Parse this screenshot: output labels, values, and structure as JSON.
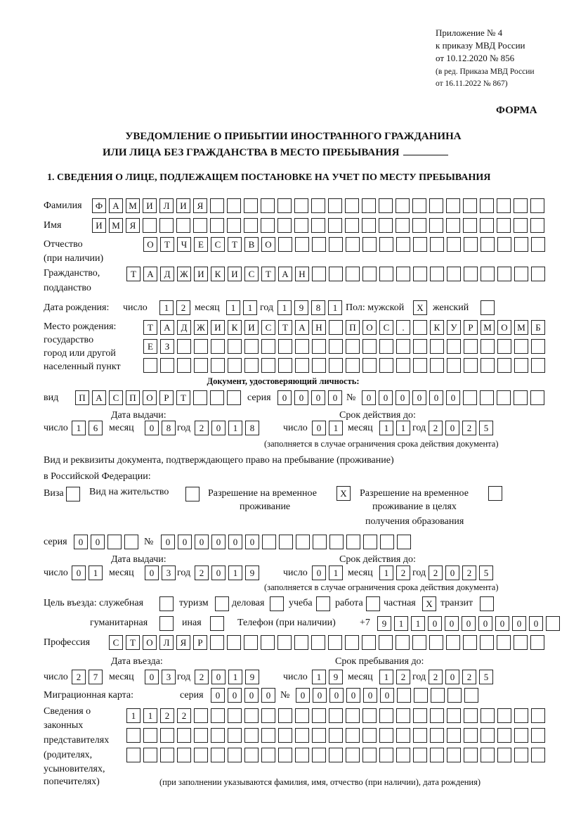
{
  "header": {
    "line1": "Приложение № 4",
    "line2": "к приказу МВД России",
    "line3": "от 10.12.2020 № 856",
    "line4": "(в ред. Приказа МВД России",
    "line5": "от 16.11.2022 № 867)",
    "form_label": "ФОРМА"
  },
  "title": {
    "line1": "УВЕДОМЛЕНИЕ О ПРИБЫТИИ ИНОСТРАННОГО ГРАЖДАНИНА",
    "line2": "ИЛИ ЛИЦА БЕЗ ГРАЖДАНСТВА В МЕСТО ПРЕБЫВАНИЯ"
  },
  "section1": {
    "heading": "1. СВЕДЕНИЯ О ЛИЦЕ, ПОДЛЕЖАЩЕМ ПОСТАНОВКЕ НА УЧЕТ ПО МЕСТУ ПРЕБЫВАНИЯ",
    "surname": {
      "label": "Фамилия",
      "value": "ФАМИЛИЯ"
    },
    "name": {
      "label": "Имя",
      "value": "ИМЯ"
    },
    "patronymic": {
      "label1": "Отчество",
      "label2": "(при наличии)",
      "value": "ОТЧЕСТВО"
    },
    "citizenship": {
      "label1": "Гражданство,",
      "label2": "подданство",
      "value": "ТАДЖИКИСТАН"
    },
    "birth_date": {
      "label": "Дата рождения:",
      "day_label": "число",
      "day": "12",
      "month_label": "месяц",
      "month": "11",
      "year_label": "год",
      "year": "1981",
      "sex_label": "Пол: мужской",
      "male": "X",
      "female_label": "женский",
      "female": ""
    },
    "birth_place": {
      "label1": "Место рождения:",
      "label2": "государство",
      "label3": "город или другой",
      "label4": "населенный пункт",
      "line1": "ТАДЖИКИСТАН ПОС. КУРМОМБ",
      "line2": "ЕЗ",
      "line3": ""
    },
    "id_doc": {
      "heading": "Документ, удостоверяющий личность:",
      "kind_label": "вид",
      "kind": "ПАСПОРТ",
      "series_label": "серия",
      "series": "0000",
      "number_label": "№",
      "number": "000000",
      "issue_label": "Дата выдачи:",
      "valid_label": "Срок действия до:",
      "day_label": "число",
      "month_label": "месяц",
      "year_label": "год",
      "issue_day": "16",
      "issue_month": "08",
      "issue_year": "2018",
      "valid_day": "01",
      "valid_month": "11",
      "valid_year": "2025",
      "note": "(заполняется в случае ограничения срока действия документа)"
    },
    "stay_doc": {
      "label1": "Вид и реквизиты документа, подтверждающего право на пребывание (проживание)",
      "label2": "в Российской Федерации:",
      "visa_label": "Виза",
      "visa": "",
      "residence_label": "Вид на жительство",
      "residence": "",
      "trp_label1": "Разрешение на временное",
      "trp_label2": "проживание",
      "trp": "X",
      "trp_edu_label1": "Разрешение на временное",
      "trp_edu_label2": "проживание в целях",
      "trp_edu_label3": "получения образования",
      "trp_edu": "",
      "series_label": "серия",
      "series": "00",
      "number_label": "№",
      "number": "000000",
      "issue_label": "Дата выдачи:",
      "valid_label": "Срок действия до:",
      "day_label": "число",
      "month_label": "месяц",
      "year_label": "год",
      "issue_day": "01",
      "issue_month": "03",
      "issue_year": "2019",
      "valid_day": "01",
      "valid_month": "12",
      "valid_year": "2025",
      "note": "(заполняется в случае ограничения срока действия документа)"
    },
    "purpose": {
      "label": "Цель въезда: служебная",
      "options": [
        {
          "label": "туризм",
          "value": ""
        },
        {
          "label": "деловая",
          "value": ""
        },
        {
          "label": "учеба",
          "value": ""
        },
        {
          "label": "работа",
          "value": ""
        },
        {
          "label": "частная",
          "value": "X"
        },
        {
          "label": "транзит",
          "value": ""
        }
      ],
      "service": "",
      "humanitarian_label": "гуманитарная",
      "humanitarian": "",
      "other_label": "иная",
      "other": ""
    },
    "phone": {
      "label": "Телефон (при наличии)",
      "prefix": "+7",
      "value": "9110000000"
    },
    "profession": {
      "label": "Профессия",
      "value": "СТОЛЯР"
    },
    "entry": {
      "entry_label": "Дата въезда:",
      "stay_label": "Срок пребывания до:",
      "day_label": "число",
      "month_label": "месяц",
      "year_label": "год",
      "entry_day": "27",
      "entry_month": "03",
      "entry_year": "2019",
      "stay_day": "19",
      "stay_month": "12",
      "stay_year": "2025"
    },
    "migration_card": {
      "label": "Миграционная карта:",
      "series_label": "серия",
      "series": "0000",
      "number_label": "№",
      "number": "000000"
    },
    "legal_reps": {
      "label1": "Сведения о",
      "label2": "законных",
      "label3": "представителях",
      "label4": "(родителях,",
      "label5": "усыновителях,",
      "label6": "попечителях)",
      "line1": "1122",
      "line2": "",
      "line3": "",
      "note": "(при заполнении указываются фамилия, имя, отчество (при наличии), дата рождения)"
    }
  }
}
